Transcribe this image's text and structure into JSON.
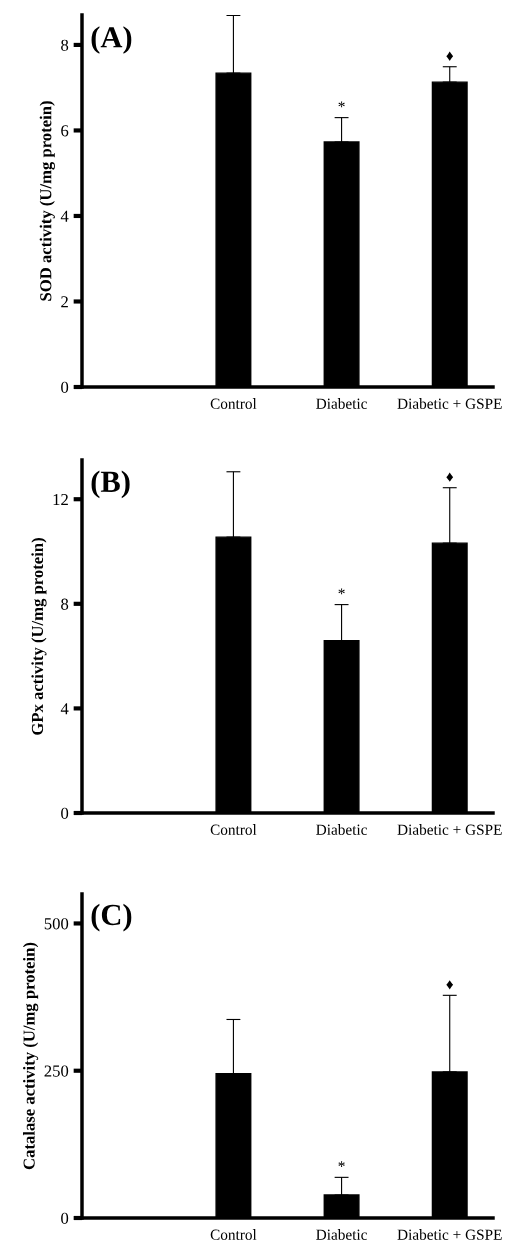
{
  "chart_data": [
    {
      "type": "bar",
      "title": "(A)",
      "ylabel": "SOD activity (U/mg protein)",
      "categories": [
        "Control",
        "Diabetic",
        "Diabetic + GSPE"
      ],
      "values": [
        7.34,
        5.73,
        7.13
      ],
      "errors": [
        [
          7.34,
          8.69
        ],
        [
          5.73,
          6.3
        ],
        [
          7.13,
          7.49
        ]
      ],
      "color": "#000000",
      "ylim": [
        0,
        8.7
      ],
      "yticks": [
        0,
        2,
        4,
        6,
        8
      ],
      "grid": false,
      "annotations": [
        {
          "text": "*",
          "x": "Diabetic",
          "y": 6.3
        },
        {
          "text": "♦",
          "x": "Diabetic + GSPE",
          "y": 7.49
        }
      ]
    },
    {
      "type": "bar",
      "title": "(B)",
      "ylabel": "GPx activity (U/mg protein)",
      "categories": [
        "Control",
        "Diabetic",
        "Diabetic + GSPE"
      ],
      "values": [
        10.55,
        6.59,
        10.32
      ],
      "errors": [
        [
          10.55,
          13.05
        ],
        [
          6.59,
          7.97
        ],
        [
          10.32,
          12.44
        ]
      ],
      "color": "#000000",
      "ylim": [
        0,
        13.5
      ],
      "yticks": [
        0,
        4,
        8,
        12
      ],
      "grid": false,
      "annotations": [
        {
          "text": "*",
          "x": "Diabetic",
          "y": 7.97
        },
        {
          "text": "♦",
          "x": "Diabetic + GSPE",
          "y": 12.44
        }
      ]
    },
    {
      "type": "bar",
      "title": "(C)",
      "ylabel": "Catalase activity (U/mg protein)",
      "categories": [
        "Control",
        "Diabetic",
        "Diabetic + GSPE"
      ],
      "values": [
        245,
        39,
        248
      ],
      "errors": [
        [
          245,
          337
        ],
        [
          39,
          69
        ],
        [
          248,
          378
        ]
      ],
      "color": "#000000",
      "ylim": [
        0,
        550
      ],
      "yticks": [
        0,
        250,
        500
      ],
      "grid": false,
      "annotations": [
        {
          "text": "*",
          "x": "Diabetic",
          "y": 69
        },
        {
          "text": "♦",
          "x": "Diabetic + GSPE",
          "y": 378
        }
      ]
    }
  ]
}
